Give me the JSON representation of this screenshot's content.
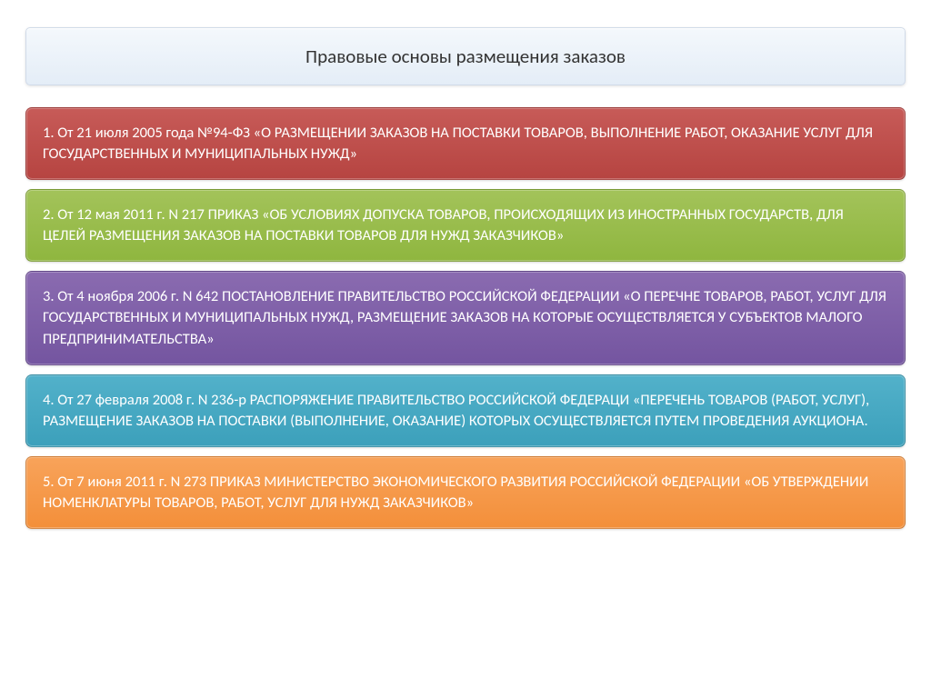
{
  "slide": {
    "title": "Правовые основы размещения заказов",
    "title_fontsize": 21,
    "title_bg_gradient_top": "#f4f8fc",
    "title_bg_gradient_bottom": "#e4edf7",
    "title_border": "#d0dae8",
    "title_text_color": "#333333",
    "background": "#ffffff",
    "item_fontsize": 16.5,
    "item_text_color": "#ffffff",
    "item_border_radius": 7,
    "items": [
      {
        "text": "1.  От 21 июля 2005 года №94-ФЗ «О РАЗМЕЩЕНИИ ЗАКАЗОВ НА ПОСТАВКИ ТОВАРОВ, ВЫПОЛНЕНИЕ РАБОТ, ОКАЗАНИЕ УСЛУГ ДЛЯ ГОСУДАРСТВЕННЫХ И МУНИЦИПАЛЬНЫХ НУЖД»",
        "bg_top": "#c75b58",
        "bg_bottom": "#b64441",
        "style": "background:linear-gradient(to bottom,#c75b58,#b64441)"
      },
      {
        "text": "2. От 12 мая 2011 г. N 217 ПРИКАЗ «ОБ УСЛОВИЯХ ДОПУСКА ТОВАРОВ, ПРОИСХОДЯЩИХ ИЗ ИНОСТРАННЫХ ГОСУДАРСТВ, ДЛЯ ЦЕЛЕЙ РАЗМЕЩЕНИЯ ЗАКАЗОВ НА ПОСТАВКИ ТОВАРОВ ДЛЯ НУЖД ЗАКАЗЧИКОВ»",
        "bg_top": "#a3c35a",
        "bg_bottom": "#8fb63f",
        "style": "background:linear-gradient(to bottom,#a3c35a,#8fb63f)"
      },
      {
        "text": "3. От 4 ноября 2006 г. N 642 ПОСТАНОВЛЕНИЕ  ПРАВИТЕЛЬСТВО РОССИЙСКОЙ ФЕДЕРАЦИИ  «О ПЕРЕЧНЕ ТОВАРОВ, РАБОТ, УСЛУГ ДЛЯ ГОСУДАРСТВЕННЫХ И МУНИЦИПАЛЬНЫХ НУЖД, РАЗМЕЩЕНИЕ ЗАКАЗОВ НА КОТОРЫЕ ОСУЩЕСТВЛЯЕТСЯ У СУБЪЕКТОВ МАЛОГО ПРЕДПРИНИМАТЕЛЬСТВА»",
        "bg_top": "#8a6bb0",
        "bg_bottom": "#7455a0",
        "style": "background:linear-gradient(to bottom,#8a6bb0,#7455a0)"
      },
      {
        "text": "4.  От 27 февраля 2008 г. N 236-р РАСПОРЯЖЕНИЕ ПРАВИТЕЛЬСТВО РОССИЙСКОЙ ФЕДЕРАЦИ «ПЕРЕЧЕНЬ ТОВАРОВ (РАБОТ, УСЛУГ), РАЗМЕЩЕНИЕ ЗАКАЗОВ НА ПОСТАВКИ (ВЫПОЛНЕНИЕ, ОКАЗАНИЕ) КОТОРЫХ ОСУЩЕСТВЛЯЕТСЯ ПУТЕМ ПРОВЕДЕНИЯ АУКЦИОНА.",
        "bg_top": "#52b1ca",
        "bg_bottom": "#3ca0bb",
        "style": "background:linear-gradient(to bottom,#52b1ca,#3ca0bb)"
      },
      {
        "text": "5. От 7 июня 2011 г. N 273 ПРИКАЗ  МИНИСТЕРСТВО ЭКОНОМИЧЕСКОГО РАЗВИТИЯ РОССИЙСКОЙ  ФЕДЕРАЦИИ «ОБ УТВЕРЖДЕНИИ НОМЕНКЛАТУРЫ ТОВАРОВ, РАБОТ, УСЛУГ ДЛЯ НУЖД ЗАКАЗЧИКОВ»",
        "bg_top": "#f8a35a",
        "bg_bottom": "#f38f3a",
        "style": "background:linear-gradient(to bottom,#f8a35a,#f38f3a)"
      }
    ]
  }
}
